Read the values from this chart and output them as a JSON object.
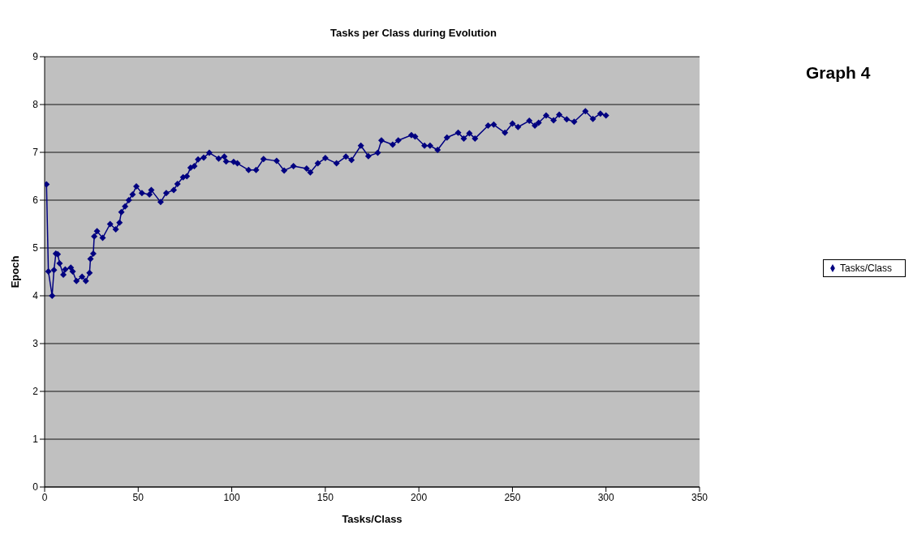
{
  "chart_data": {
    "type": "line",
    "title": "Tasks per Class during Evolution",
    "xlabel": "Tasks/Class",
    "ylabel": "Epoch",
    "annotations": [
      "Graph 4"
    ],
    "x": [
      1,
      2,
      4,
      5,
      6,
      7,
      8,
      10,
      11,
      14,
      15,
      17,
      20,
      22,
      24,
      24.5,
      26,
      26.5,
      28,
      31,
      35,
      38,
      40,
      41,
      43,
      45,
      47,
      49,
      52,
      56,
      57,
      62,
      65,
      69,
      71,
      74,
      76,
      78,
      80,
      82,
      85,
      88,
      93,
      96,
      97,
      101,
      103,
      109,
      113,
      117,
      124,
      128,
      133,
      140,
      142,
      146,
      150,
      156,
      161,
      164,
      169,
      173,
      178,
      180,
      186,
      189,
      196,
      198,
      203,
      206,
      210,
      215,
      221,
      224,
      227,
      230,
      237,
      240,
      246,
      250,
      253,
      259,
      262,
      264,
      268,
      272,
      275,
      279,
      283,
      289,
      293,
      297,
      300
    ],
    "series": [
      {
        "name": "Tasks/Class",
        "color": "#000080",
        "values": [
          6.33,
          4.51,
          4.0,
          4.54,
          4.88,
          4.87,
          4.68,
          4.44,
          4.55,
          4.59,
          4.51,
          4.31,
          4.4,
          4.31,
          4.48,
          4.77,
          4.88,
          5.24,
          5.35,
          5.21,
          5.5,
          5.39,
          5.53,
          5.75,
          5.87,
          6.0,
          6.12,
          6.29,
          6.15,
          6.12,
          6.21,
          5.96,
          6.15,
          6.21,
          6.34,
          6.48,
          6.5,
          6.68,
          6.71,
          6.85,
          6.89,
          6.99,
          6.87,
          6.91,
          6.81,
          6.8,
          6.77,
          6.63,
          6.63,
          6.86,
          6.82,
          6.62,
          6.71,
          6.66,
          6.58,
          6.77,
          6.88,
          6.77,
          6.91,
          6.84,
          7.14,
          6.92,
          6.99,
          7.25,
          7.16,
          7.25,
          7.36,
          7.33,
          7.14,
          7.14,
          7.05,
          7.31,
          7.41,
          7.29,
          7.4,
          7.29,
          7.56,
          7.58,
          7.41,
          7.6,
          7.53,
          7.66,
          7.56,
          7.62,
          7.77,
          7.67,
          7.79,
          7.69,
          7.64,
          7.86,
          7.7,
          7.81,
          7.77
        ]
      }
    ],
    "xlim": [
      0,
      350
    ],
    "xticks": [
      0,
      50,
      100,
      150,
      200,
      250,
      300,
      350
    ],
    "ylim": [
      0,
      9
    ],
    "yticks": [
      0,
      1,
      2,
      3,
      4,
      5,
      6,
      7,
      8,
      9
    ],
    "grid": "y",
    "legend": "right",
    "marker": "diamond",
    "line_style": "solid"
  }
}
